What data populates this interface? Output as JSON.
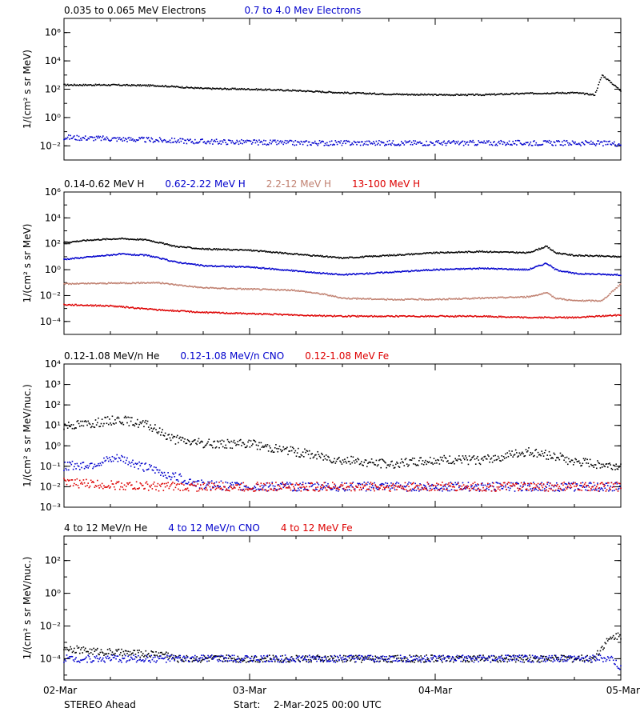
{
  "footer": {
    "spacecraft": "STEREO Ahead",
    "start_label": "Start:",
    "start_value": "2-Mar-2025 00:00 UTC"
  },
  "x_axis": {
    "ticks": [
      "02-Mar",
      "03-Mar",
      "04-Mar",
      "05-Mar"
    ],
    "range_days": [
      0,
      3
    ]
  },
  "chart_data": [
    {
      "type": "scatter",
      "log_y": true,
      "ylabel": "1/(cm² s sr MeV)",
      "ylim_exp": [
        -3,
        7
      ],
      "yticks": [
        {
          "exp": -2,
          "label": "10⁻²"
        },
        {
          "exp": 0,
          "label": "10⁰"
        },
        {
          "exp": 2,
          "label": "10²"
        },
        {
          "exp": 4,
          "label": "10⁴"
        },
        {
          "exp": 6,
          "label": "10⁶"
        }
      ],
      "legend_position": "top-left",
      "series": [
        {
          "name": "0.035 to 0.065 MeV Electrons",
          "color": "#000000",
          "x": [
            0.0,
            0.25,
            0.5,
            0.75,
            1.0,
            1.25,
            1.5,
            1.75,
            2.0,
            2.25,
            2.5,
            2.75,
            2.86,
            2.9,
            3.0
          ],
          "log_values": [
            2.3,
            2.3,
            2.25,
            2.05,
            2.0,
            1.9,
            1.75,
            1.65,
            1.6,
            1.6,
            1.7,
            1.75,
            1.6,
            3.0,
            1.9
          ]
        },
        {
          "name": "0.7 to 4.0 Mev Electrons",
          "color": "#0000cc",
          "x": [
            0.0,
            0.25,
            0.5,
            0.75,
            1.0,
            1.25,
            1.5,
            1.75,
            2.0,
            2.25,
            2.5,
            2.75,
            3.0
          ],
          "log_values": [
            -1.4,
            -1.5,
            -1.6,
            -1.7,
            -1.75,
            -1.8,
            -1.8,
            -1.8,
            -1.8,
            -1.8,
            -1.8,
            -1.8,
            -1.85
          ]
        }
      ]
    },
    {
      "type": "scatter",
      "log_y": true,
      "ylabel": "1/(cm² s sr MeV)",
      "ylim_exp": [
        -5,
        6
      ],
      "yticks": [
        {
          "exp": -4,
          "label": "10⁻⁴"
        },
        {
          "exp": -2,
          "label": "10⁻²"
        },
        {
          "exp": 0,
          "label": "10⁰"
        },
        {
          "exp": 2,
          "label": "10²"
        },
        {
          "exp": 4,
          "label": "10⁴"
        },
        {
          "exp": 6,
          "label": "10⁶"
        }
      ],
      "legend_position": "top-left",
      "series": [
        {
          "name": "0.14-0.62 MeV H",
          "color": "#000000",
          "x": [
            0.0,
            0.15,
            0.3,
            0.45,
            0.6,
            0.75,
            1.0,
            1.25,
            1.5,
            1.75,
            2.0,
            2.25,
            2.5,
            2.6,
            2.65,
            2.75,
            3.0
          ],
          "log_values": [
            2.1,
            2.3,
            2.4,
            2.3,
            1.8,
            1.6,
            1.5,
            1.2,
            0.9,
            1.1,
            1.3,
            1.4,
            1.3,
            1.8,
            1.3,
            1.1,
            1.0
          ]
        },
        {
          "name": "0.62-2.22 MeV H",
          "color": "#0000cc",
          "x": [
            0.0,
            0.15,
            0.3,
            0.45,
            0.6,
            0.75,
            1.0,
            1.25,
            1.5,
            1.75,
            2.0,
            2.25,
            2.5,
            2.6,
            2.65,
            2.75,
            3.0
          ],
          "log_values": [
            0.8,
            1.0,
            1.2,
            1.1,
            0.6,
            0.3,
            0.2,
            -0.1,
            -0.4,
            -0.2,
            0.0,
            0.1,
            0.0,
            0.5,
            0.0,
            -0.3,
            -0.4
          ]
        },
        {
          "name": "2.2-12 MeV H",
          "color": "#c08070",
          "x": [
            0.0,
            0.25,
            0.5,
            0.75,
            1.0,
            1.25,
            1.4,
            1.5,
            1.75,
            2.0,
            2.25,
            2.5,
            2.6,
            2.65,
            2.75,
            2.9,
            3.0
          ],
          "log_values": [
            -1.1,
            -1.05,
            -1.0,
            -1.4,
            -1.5,
            -1.6,
            -1.9,
            -2.2,
            -2.3,
            -2.3,
            -2.2,
            -2.1,
            -1.8,
            -2.2,
            -2.4,
            -2.4,
            -1.1
          ]
        },
        {
          "name": "13-100 MeV H",
          "color": "#dd0000",
          "x": [
            0.0,
            0.25,
            0.5,
            0.75,
            1.0,
            1.25,
            1.5,
            1.75,
            2.0,
            2.25,
            2.5,
            2.75,
            3.0
          ],
          "log_values": [
            -2.7,
            -2.8,
            -3.1,
            -3.3,
            -3.4,
            -3.5,
            -3.6,
            -3.6,
            -3.6,
            -3.6,
            -3.7,
            -3.7,
            -3.5
          ]
        }
      ]
    },
    {
      "type": "scatter",
      "log_y": true,
      "ylabel": "1/(cm² s sr MeV/nuc.)",
      "ylim_exp": [
        -3,
        4
      ],
      "yticks": [
        {
          "exp": -3,
          "label": "10⁻³"
        },
        {
          "exp": -2,
          "label": "10⁻²"
        },
        {
          "exp": -1,
          "label": "10⁻¹"
        },
        {
          "exp": 0,
          "label": "10⁰"
        },
        {
          "exp": 1,
          "label": "10¹"
        },
        {
          "exp": 2,
          "label": "10²"
        },
        {
          "exp": 3,
          "label": "10³"
        },
        {
          "exp": 4,
          "label": "10⁴"
        }
      ],
      "legend_position": "top-left",
      "series": [
        {
          "name": "0.12-1.08 MeV/n He",
          "color": "#000000",
          "x": [
            0.0,
            0.15,
            0.3,
            0.45,
            0.6,
            0.75,
            1.0,
            1.25,
            1.5,
            1.75,
            2.0,
            2.25,
            2.5,
            2.65,
            2.75,
            3.0
          ],
          "log_values": [
            1.0,
            1.1,
            1.3,
            1.0,
            0.3,
            0.1,
            0.1,
            -0.3,
            -0.7,
            -0.9,
            -0.7,
            -0.7,
            -0.3,
            -0.5,
            -0.8,
            -1.0
          ]
        },
        {
          "name": "0.12-1.08 MeV/n CNO",
          "color": "#0000cc",
          "x": [
            0.0,
            0.15,
            0.3,
            0.45,
            0.6,
            0.75,
            1.0,
            1.25,
            1.5,
            1.75,
            2.0,
            2.25,
            2.5,
            2.75,
            3.0
          ],
          "log_values": [
            -1.0,
            -0.9,
            -0.6,
            -1.1,
            -1.5,
            -1.9,
            -2.0,
            -2.0,
            -2.0,
            -2.0,
            -2.0,
            -2.0,
            -2.0,
            -2.0,
            -2.0
          ]
        },
        {
          "name": "0.12-1.08 MeV Fe",
          "color": "#dd0000",
          "x": [
            0.0,
            0.25,
            0.5,
            0.75,
            1.0,
            1.25,
            1.5,
            1.75,
            2.0,
            2.25,
            2.5,
            2.75,
            3.0
          ],
          "log_values": [
            -1.8,
            -1.9,
            -2.0,
            -2.0,
            -2.0,
            -2.0,
            -2.0,
            -2.0,
            -2.0,
            -2.0,
            -2.0,
            -2.0,
            -2.0
          ]
        }
      ]
    },
    {
      "type": "scatter",
      "log_y": true,
      "ylabel": "1/(cm² s sr MeV/nuc.)",
      "ylim_exp": [
        -5.3,
        3.5
      ],
      "yticks": [
        {
          "exp": -4,
          "label": "10⁻⁴"
        },
        {
          "exp": -2,
          "label": "10⁻²"
        },
        {
          "exp": 0,
          "label": "10⁰"
        },
        {
          "exp": 2,
          "label": "10²"
        }
      ],
      "legend_position": "top-left",
      "series": [
        {
          "name": "4 to 12 MeV/n He",
          "color": "#000000",
          "x": [
            0.0,
            0.1,
            0.25,
            0.4,
            0.55,
            0.6,
            1.0,
            1.5,
            2.0,
            2.5,
            2.85,
            2.92,
            2.97,
            3.0
          ],
          "log_values": [
            -3.3,
            -3.5,
            -3.6,
            -3.7,
            -3.7,
            -4.0,
            -4.0,
            -4.0,
            -4.0,
            -4.0,
            -4.0,
            -3.0,
            -2.6,
            -2.6
          ]
        },
        {
          "name": "4 to 12 MeV/n CNO",
          "color": "#0000cc",
          "x": [
            0.0,
            0.5,
            1.0,
            1.5,
            2.0,
            2.5,
            2.95,
            3.0
          ],
          "log_values": [
            -4.0,
            -4.0,
            -4.0,
            -4.0,
            -4.0,
            -4.0,
            -4.0,
            -4.6
          ]
        },
        {
          "name": "4 to 12 MeV Fe",
          "color": "#dd0000",
          "x": [],
          "log_values": []
        }
      ]
    }
  ]
}
